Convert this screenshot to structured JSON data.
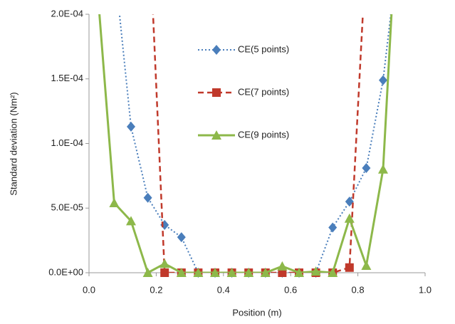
{
  "chart_data": {
    "type": "line",
    "x_label": "Position (m)",
    "y_label": "Standard deviation  (Nm²)",
    "xlim": [
      0,
      1
    ],
    "xticks": [
      {
        "value": 0,
        "label": "0.0"
      },
      {
        "value": 0.2,
        "label": "0.2"
      },
      {
        "value": 0.4,
        "label": "0.4"
      },
      {
        "value": 0.6,
        "label": "0.6"
      },
      {
        "value": 0.8,
        "label": "0.8"
      },
      {
        "value": 1,
        "label": "1.0"
      }
    ],
    "ylim": [
      0,
      0.0002
    ],
    "yticks": [
      {
        "value": 0,
        "label": "0.0E+00"
      },
      {
        "value": 5e-05,
        "label": "5.0E-05"
      },
      {
        "value": 0.0001,
        "label": "1.0E-04"
      },
      {
        "value": 0.00015,
        "label": "1.5E-04"
      },
      {
        "value": 0.0002,
        "label": "2.0E-04"
      }
    ],
    "series": [
      {
        "name": "CE(5 points)",
        "color": "#4a7ebb",
        "style": "dotted",
        "marker": "diamond",
        "x": [
          0.075,
          0.125,
          0.175,
          0.225,
          0.275,
          0.325,
          0.375,
          0.425,
          0.475,
          0.525,
          0.575,
          0.625,
          0.675,
          0.725,
          0.775,
          0.825,
          0.875,
          0.925
        ],
        "values": [
          0.00024,
          0.000113,
          5.8e-05,
          3.7e-05,
          2.75e-05,
          0,
          0,
          0,
          0,
          0,
          0,
          0,
          0,
          3.5e-05,
          5.5e-05,
          8.1e-05,
          0.000149,
          0.00026
        ]
      },
      {
        "name": "CE(7 points)",
        "color": "#c0392b",
        "style": "dashed",
        "marker": "square",
        "x": [
          0.175,
          0.225,
          0.275,
          0.325,
          0.375,
          0.425,
          0.475,
          0.525,
          0.575,
          0.625,
          0.675,
          0.725,
          0.775,
          0.825
        ],
        "values": [
          0.00029,
          0,
          0,
          0,
          0,
          0,
          0,
          0,
          0,
          0,
          0,
          0,
          4e-06,
          0.00025
        ]
      },
      {
        "name": "CE(9 points)",
        "color": "#8db84a",
        "style": "solid",
        "marker": "triangle",
        "x": [
          0.025,
          0.075,
          0.125,
          0.175,
          0.225,
          0.275,
          0.325,
          0.375,
          0.425,
          0.475,
          0.525,
          0.575,
          0.625,
          0.675,
          0.725,
          0.775,
          0.825,
          0.875,
          0.925
        ],
        "values": [
          0.00022,
          5.4e-05,
          4e-05,
          0,
          7e-06,
          0,
          0,
          0,
          0,
          0,
          0,
          5e-06,
          0,
          1e-06,
          0,
          4.2e-05,
          5.5e-06,
          8e-05,
          0.00032
        ]
      }
    ]
  }
}
